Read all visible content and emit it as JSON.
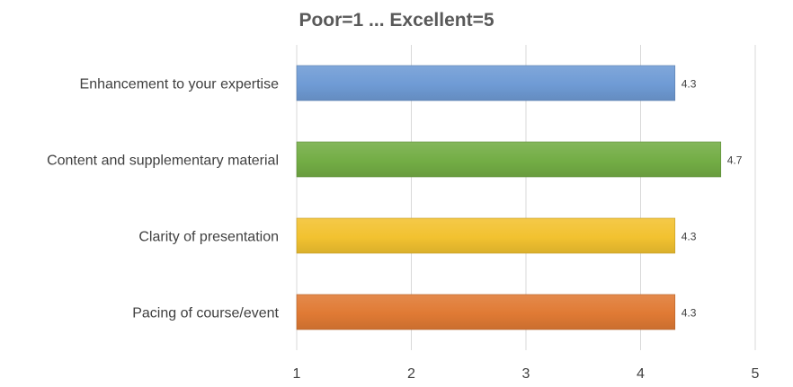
{
  "chart_data": {
    "type": "bar",
    "orientation": "horizontal",
    "title": "Poor=1 ... Excellent=5",
    "categories": [
      "Enhancement to your expertise",
      "Content and supplementary material",
      "Clarity of presentation",
      "Pacing of course/event"
    ],
    "values": [
      4.3,
      4.7,
      4.3,
      4.3
    ],
    "data_labels": [
      "4.3",
      "4.7",
      "4.3",
      "4.3"
    ],
    "colors": [
      "#6f9bd5",
      "#73ad45",
      "#f2c230",
      "#e07a34"
    ],
    "xlim": [
      1,
      5
    ],
    "x_ticks": [
      "1",
      "2",
      "3",
      "4",
      "5"
    ],
    "grid": true,
    "legend": "none"
  }
}
